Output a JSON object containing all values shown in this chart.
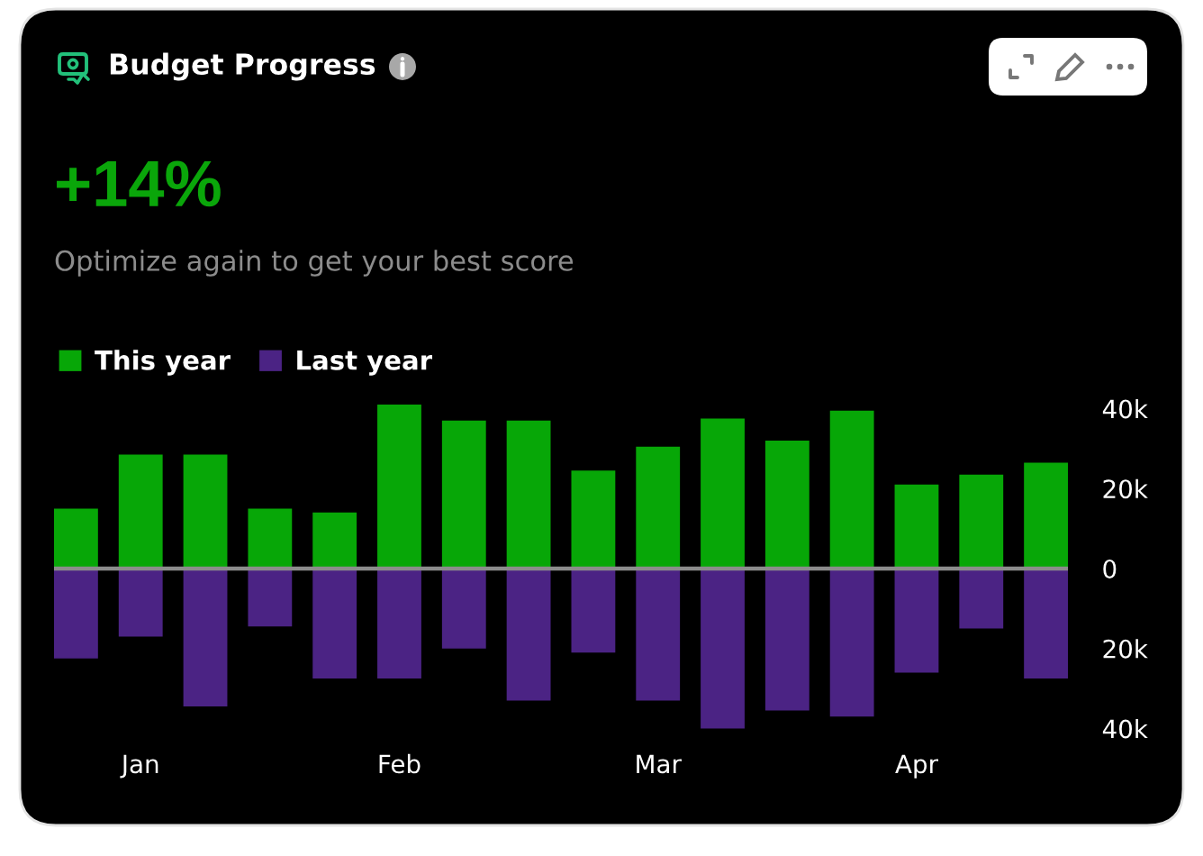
{
  "chart_data": {
    "type": "bar",
    "title": "Budget Progress",
    "subtitle": "Optimize again to get your best score",
    "annotations": [
      "+14%"
    ],
    "categories": [
      null,
      "Jan",
      null,
      null,
      null,
      "Feb",
      null,
      null,
      null,
      "Mar",
      null,
      null,
      null,
      "Apr",
      null,
      null
    ],
    "ylim": [
      -42000,
      42000
    ],
    "yticks": [
      {
        "value": 40000,
        "label": "40k"
      },
      {
        "value": 20000,
        "label": "20k"
      },
      0,
      {
        "value": -20000,
        "label": "20k"
      },
      {
        "value": -40000,
        "label": "40k"
      }
    ],
    "stacked": true,
    "series": [
      {
        "name": "This year",
        "color": "#07a707",
        "values": [
          15000,
          28500,
          28500,
          15000,
          14000,
          41000,
          37000,
          37000,
          24500,
          30500,
          37500,
          32000,
          39500,
          21000,
          23500,
          26500
        ]
      },
      {
        "name": "Last year",
        "color": "#4b2384",
        "values": [
          -22500,
          -17000,
          -34500,
          -14500,
          -27500,
          -27500,
          -20000,
          -33000,
          -21000,
          -33000,
          -40000,
          -35500,
          -37000,
          -26000,
          -15000,
          -27500
        ]
      }
    ],
    "ref_lines": [
      {
        "axis": "y",
        "value": 0,
        "color": "#8c8c8c"
      }
    ],
    "legend": "top left"
  }
}
